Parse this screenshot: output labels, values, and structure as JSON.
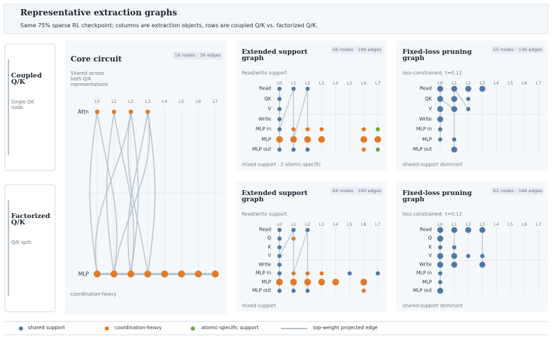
{
  "header": {
    "title": "Representative extraction graphs",
    "subtitle": "Same 75% sparse RL checkpoint; columns are extraction objects, rows are coupled Q/K vs. factorized Q/K."
  },
  "row_labels": [
    {
      "title": "Coupled Q/K",
      "note": "Single QK node."
    },
    {
      "title": "Factorized Q/K",
      "note": "Q/K split."
    }
  ],
  "layers": [
    "L0",
    "L1",
    "L2",
    "L3",
    "L4",
    "L5",
    "L6",
    "L7"
  ],
  "core": {
    "title": "Core circuit",
    "badge": "16 nodes · 36 edges",
    "subtitle": "Shared across both Q/K representations",
    "rows": [
      "Attn",
      "MLP"
    ],
    "footer": "coordination-heavy"
  },
  "panels": [
    {
      "title": "Extended support graph",
      "badge": "56 nodes · 146 edges",
      "subtitle": "Read/write support",
      "rows": [
        "Read",
        "QK",
        "V",
        "Write",
        "MLP in",
        "MLP",
        "MLP out"
      ],
      "footer": "mixed support · 2 atomic-specific"
    },
    {
      "title": "Fixed-loss pruning graph",
      "badge": "55 nodes · 136 edges",
      "subtitle": "loss-constrained; τ=0.12",
      "rows": [
        "Read",
        "QK",
        "V",
        "Write",
        "MLP in",
        "MLP",
        "MLP out"
      ],
      "footer": "shared-support dominant"
    },
    {
      "title": "Extended support graph",
      "badge": "64 nodes · 160 edges",
      "subtitle": "Read/write support",
      "rows": [
        "Read",
        "Q",
        "K",
        "V",
        "Write",
        "MLP in",
        "MLP",
        "MLP out"
      ],
      "footer": "mixed support"
    },
    {
      "title": "Fixed-loss pruning graph",
      "badge": "62 nodes · 146 edges",
      "subtitle": "loss-constrained; τ=0.12",
      "rows": [
        "Read",
        "Q",
        "K",
        "V",
        "Write",
        "MLP in",
        "MLP",
        "MLP out"
      ],
      "footer": "shared-support dominant"
    }
  ],
  "legend": [
    "shared support",
    "coordination-heavy",
    "atomic-specific support",
    "top-weight projected edge"
  ]
}
